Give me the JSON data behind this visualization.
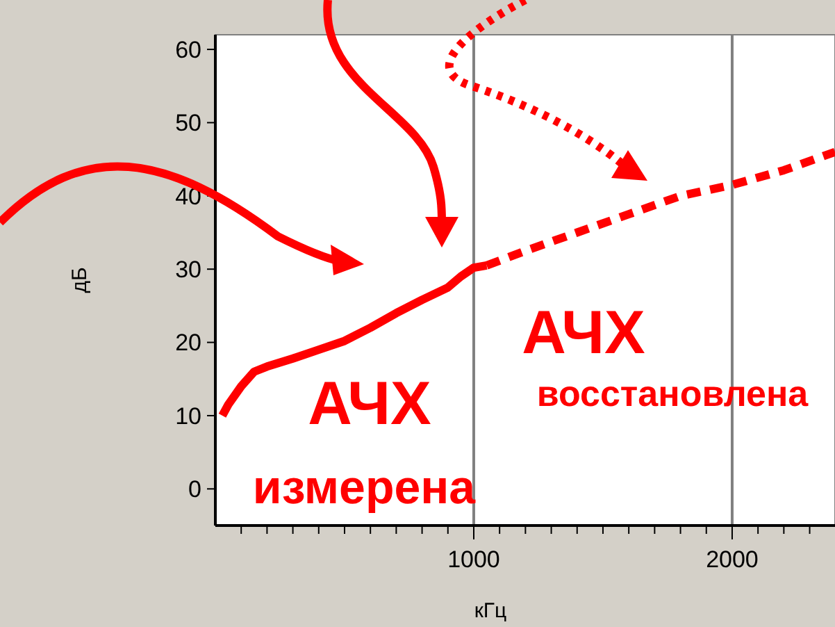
{
  "chart_data": {
    "type": "line",
    "xlabel": "кГц",
    "ylabel": "дБ",
    "xlim": [
      0,
      2398
    ],
    "ylim": [
      -5,
      62
    ],
    "xticks": [
      {
        "value": 100,
        "label": null
      },
      {
        "value": 200,
        "label": null
      },
      {
        "value": 300,
        "label": null
      },
      {
        "value": 400,
        "label": null
      },
      {
        "value": 500,
        "label": null
      },
      {
        "value": 600,
        "label": null
      },
      {
        "value": 700,
        "label": null
      },
      {
        "value": 800,
        "label": null
      },
      {
        "value": 900,
        "label": null
      },
      1000,
      {
        "value": 1100,
        "label": null
      },
      {
        "value": 1200,
        "label": null
      },
      {
        "value": 1300,
        "label": null
      },
      {
        "value": 1400,
        "label": null
      },
      {
        "value": 1500,
        "label": null
      },
      {
        "value": 1600,
        "label": null
      },
      {
        "value": 1700,
        "label": null
      },
      {
        "value": 1800,
        "label": null
      },
      {
        "value": 1900,
        "label": null
      },
      2000,
      {
        "value": 2100,
        "label": null
      },
      {
        "value": 2200,
        "label": null
      },
      {
        "value": 2300,
        "label": null
      }
    ],
    "yticks": [
      0,
      10,
      20,
      30,
      40,
      50,
      60
    ],
    "grid": "x",
    "series": [
      {
        "color": "#ff0000",
        "line_style": "solid",
        "x": [
          27,
          50,
          100,
          150,
          200,
          300,
          400,
          500,
          600,
          700,
          800,
          900,
          950,
          1000,
          1050
        ],
        "values": [
          10,
          11.5,
          14,
          16,
          16.7,
          17.8,
          19,
          20.2,
          22,
          24,
          25.8,
          27.5,
          29,
          30.2,
          30.5
        ]
      },
      {
        "color": "#ff0000",
        "line_style": "dashed",
        "x": [
          1050,
          1200,
          1400,
          1600,
          1800,
          2000,
          2200,
          2398
        ],
        "values": [
          30.5,
          32.5,
          35,
          37.5,
          40,
          41.5,
          43.5,
          46
        ]
      }
    ],
    "annotations": [
      "АЧХ",
      "измерена",
      "АЧХ",
      "восстановлена"
    ]
  }
}
